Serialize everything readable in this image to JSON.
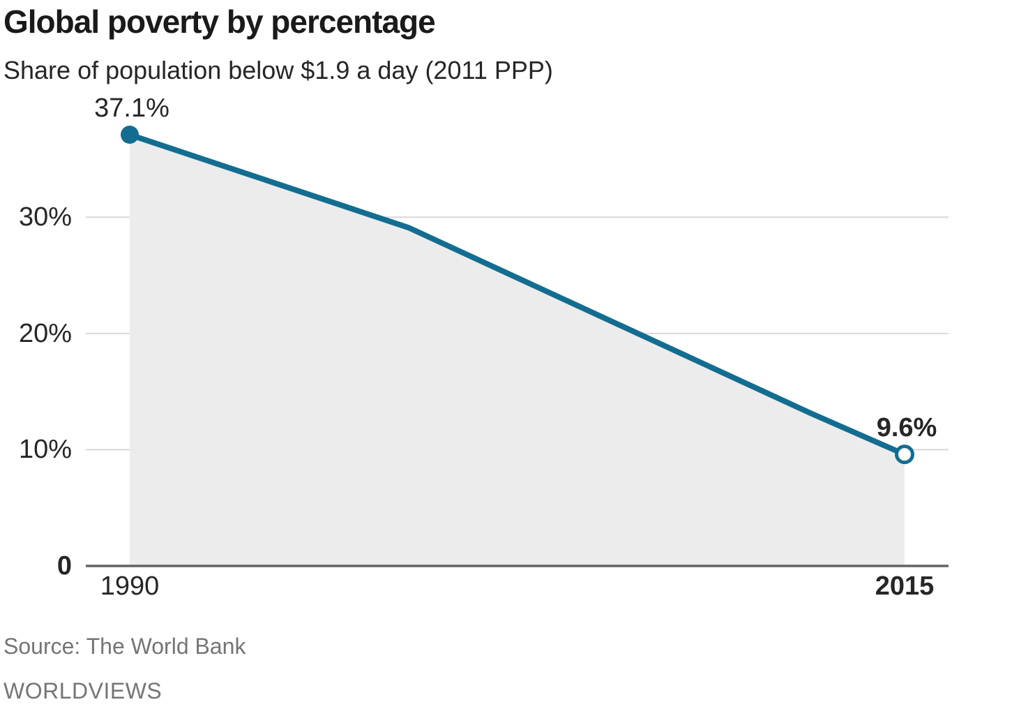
{
  "header": {
    "title": "Global poverty by percentage",
    "subtitle": "Share of population below $1.9 a day (2011 PPP)"
  },
  "footer": {
    "source": "Source: The World Bank",
    "brand": "WORLDVIEWS"
  },
  "chart_data": {
    "type": "area",
    "title": "Global poverty by percentage",
    "subtitle": "Share of population below $1.9 a day (2011 PPP)",
    "x": [
      1990,
      1999,
      2012,
      2015
    ],
    "values": [
      37.1,
      29.1,
      13.1,
      9.6
    ],
    "xlim": [
      1990,
      2015
    ],
    "ylim": [
      0,
      40
    ],
    "grid_on": true,
    "legend": "none",
    "yticks": [
      {
        "value": 30,
        "label": "30%",
        "bold": false
      },
      {
        "value": 20,
        "label": "20%",
        "bold": false
      },
      {
        "value": 10,
        "label": "10%",
        "bold": false
      },
      {
        "value": 0,
        "label": "0",
        "bold": true
      }
    ],
    "xticks": [
      {
        "value": 1990,
        "label": "1990",
        "bold": false
      },
      {
        "value": 2015,
        "label": "2015",
        "bold": true
      }
    ],
    "point_labels": [
      {
        "x": 1990,
        "y": 37.1,
        "text": "37.1%",
        "bold": false,
        "marker": "filled"
      },
      {
        "x": 2015,
        "y": 9.6,
        "text": "9.6%",
        "bold": true,
        "marker": "open"
      }
    ],
    "colors": {
      "line": "#136d90",
      "area": "#ececec",
      "grid": "#d9d9d9",
      "axis": "#636363"
    }
  }
}
